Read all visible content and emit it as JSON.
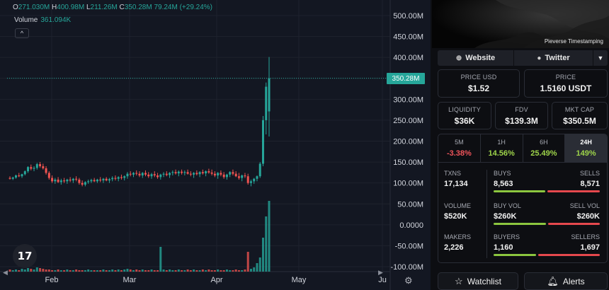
{
  "chart": {
    "ohlc": {
      "o_label": "O",
      "o": "271.030M",
      "h_label": "H",
      "h": "400.98M",
      "l_label": "L",
      "l": "211.26M",
      "c_label": "C",
      "c": "350.28M",
      "change": "79.24M (+29.24%)"
    },
    "volume_label": "Volume",
    "volume_value": "361.094K",
    "collapse_glyph": "^",
    "last_price_tag": "350.28M",
    "logo_text": "17",
    "colors": {
      "up": "#26a69a",
      "down": "#ef5350",
      "background": "#131722",
      "grid": "#1e222d"
    }
  },
  "chart_data": {
    "type": "candlestick",
    "yticks": [
      "500.00M",
      "450.00M",
      "400.00M",
      "350.00M",
      "300.00M",
      "250.00M",
      "200.00M",
      "150.00M",
      "100.00M",
      "50.00M",
      "0.0000",
      "-50.00M",
      "-100.00M"
    ],
    "ylim": [
      -100,
      500
    ],
    "xticks": [
      "Feb",
      "Mar",
      "Apr",
      "May",
      "Ju"
    ],
    "last_value": 350.28,
    "candles": [
      [
        112,
        116,
        108,
        110
      ],
      [
        110,
        115,
        107,
        113
      ],
      [
        113,
        120,
        110,
        118
      ],
      [
        118,
        124,
        114,
        116
      ],
      [
        116,
        122,
        112,
        121
      ],
      [
        121,
        130,
        118,
        128
      ],
      [
        128,
        140,
        124,
        138
      ],
      [
        138,
        144,
        130,
        134
      ],
      [
        134,
        140,
        128,
        136
      ],
      [
        136,
        148,
        132,
        145
      ],
      [
        145,
        150,
        136,
        140
      ],
      [
        140,
        146,
        132,
        135
      ],
      [
        135,
        140,
        120,
        124
      ],
      [
        124,
        128,
        108,
        112
      ],
      [
        112,
        118,
        100,
        104
      ],
      [
        104,
        112,
        98,
        108
      ],
      [
        108,
        114,
        100,
        102
      ],
      [
        102,
        110,
        96,
        106
      ],
      [
        106,
        112,
        100,
        104
      ],
      [
        104,
        110,
        98,
        108
      ],
      [
        108,
        114,
        102,
        106
      ],
      [
        106,
        112,
        100,
        110
      ],
      [
        110,
        116,
        104,
        108
      ],
      [
        108,
        112,
        96,
        100
      ],
      [
        100,
        106,
        92,
        96
      ],
      [
        96,
        104,
        92,
        102
      ],
      [
        102,
        108,
        98,
        104
      ],
      [
        104,
        110,
        100,
        107
      ],
      [
        107,
        112,
        102,
        104
      ],
      [
        104,
        110,
        100,
        108
      ],
      [
        108,
        114,
        102,
        106
      ],
      [
        106,
        112,
        100,
        110
      ],
      [
        110,
        114,
        104,
        106
      ],
      [
        106,
        112,
        100,
        109
      ],
      [
        109,
        116,
        104,
        112
      ],
      [
        112,
        118,
        106,
        110
      ],
      [
        110,
        116,
        104,
        114
      ],
      [
        114,
        120,
        108,
        112
      ],
      [
        112,
        118,
        106,
        116
      ],
      [
        116,
        126,
        110,
        122
      ],
      [
        122,
        128,
        116,
        120
      ],
      [
        120,
        126,
        114,
        124
      ],
      [
        124,
        130,
        118,
        122
      ],
      [
        122,
        128,
        114,
        118
      ],
      [
        118,
        126,
        112,
        124
      ],
      [
        124,
        130,
        116,
        120
      ],
      [
        120,
        126,
        112,
        116
      ],
      [
        116,
        124,
        110,
        121
      ],
      [
        121,
        128,
        114,
        118
      ],
      [
        118,
        124,
        110,
        114
      ],
      [
        114,
        122,
        108,
        120
      ],
      [
        120,
        126,
        114,
        122
      ],
      [
        122,
        128,
        116,
        119
      ],
      [
        119,
        126,
        112,
        124
      ],
      [
        124,
        130,
        118,
        126
      ],
      [
        126,
        132,
        120,
        123
      ],
      [
        123,
        130,
        116,
        127
      ],
      [
        127,
        132,
        120,
        124
      ],
      [
        124,
        130,
        118,
        126
      ],
      [
        126,
        132,
        120,
        122
      ],
      [
        122,
        128,
        116,
        120
      ],
      [
        120,
        126,
        112,
        124
      ],
      [
        124,
        130,
        118,
        121
      ],
      [
        121,
        128,
        114,
        126
      ],
      [
        126,
        132,
        120,
        123
      ],
      [
        123,
        130,
        116,
        128
      ],
      [
        128,
        134,
        122,
        125
      ],
      [
        125,
        132,
        118,
        122
      ],
      [
        122,
        128,
        114,
        118
      ],
      [
        118,
        126,
        110,
        124
      ],
      [
        124,
        130,
        116,
        120
      ],
      [
        120,
        126,
        110,
        114
      ],
      [
        114,
        122,
        108,
        120
      ],
      [
        120,
        128,
        114,
        126
      ],
      [
        126,
        132,
        118,
        122
      ],
      [
        122,
        128,
        114,
        116
      ],
      [
        116,
        124,
        108,
        112
      ],
      [
        112,
        120,
        104,
        118
      ],
      [
        118,
        124,
        112,
        116
      ],
      [
        116,
        122,
        96,
        100
      ],
      [
        100,
        108,
        92,
        104
      ],
      [
        104,
        112,
        98,
        110
      ],
      [
        110,
        118,
        104,
        116
      ],
      [
        116,
        150,
        112,
        146
      ],
      [
        146,
        260,
        140,
        250
      ],
      [
        250,
        340,
        216,
        330
      ],
      [
        271,
        401,
        211,
        350
      ]
    ],
    "volumes": [
      3,
      2,
      3,
      2,
      4,
      3,
      5,
      4,
      3,
      6,
      5,
      4,
      3,
      3,
      2,
      2,
      3,
      2,
      2,
      3,
      2,
      2,
      3,
      2,
      2,
      2,
      3,
      2,
      2,
      2,
      2,
      3,
      2,
      2,
      3,
      2,
      3,
      2,
      3,
      4,
      3,
      2,
      3,
      2,
      3,
      2,
      2,
      3,
      2,
      2,
      35,
      3,
      2,
      3,
      2,
      2,
      3,
      2,
      2,
      3,
      2,
      3,
      2,
      2,
      3,
      2,
      3,
      2,
      2,
      3,
      2,
      2,
      3,
      2,
      2,
      3,
      2,
      2,
      3,
      28,
      4,
      6,
      12,
      20,
      48,
      78,
      100
    ]
  },
  "side": {
    "banner_label": "Pieverse Timestamping",
    "links": {
      "website": "Website",
      "twitter": "Twitter"
    },
    "price_usd_label": "PRICE USD",
    "price_usd": "$1.52",
    "price_label": "PRICE",
    "price": "1.5160 USDT",
    "liquidity_label": "LIQUIDITY",
    "liquidity": "$36K",
    "fdv_label": "FDV",
    "fdv": "$139.3M",
    "mktcap_label": "MKT CAP",
    "mktcap": "$350.5M",
    "timeframes": [
      {
        "label": "5M",
        "value": "-3.38%"
      },
      {
        "label": "1H",
        "value": "14.56%"
      },
      {
        "label": "6H",
        "value": "25.49%"
      },
      {
        "label": "24H",
        "value": "149%"
      }
    ],
    "txns_label": "TXNS",
    "txns": "17,134",
    "buys_label": "BUYS",
    "buys": "8,563",
    "sells_label": "SELLS",
    "sells": "8,571",
    "volume_label": "VOLUME",
    "volume": "$520K",
    "buy_vol_label": "BUY VOL",
    "buy_vol": "$260K",
    "sell_vol_label": "SELL VOL",
    "sell_vol": "$260K",
    "makers_label": "MAKERS",
    "makers": "2,226",
    "buyers_label": "BUYERS",
    "buyers": "1,160",
    "sellers_label": "SELLERS",
    "sellers": "1,697",
    "ratios": {
      "buys": 0.4998,
      "buy_vol": 0.5,
      "buyers": 0.406
    },
    "watchlist": "Watchlist",
    "alerts": "Alerts"
  }
}
